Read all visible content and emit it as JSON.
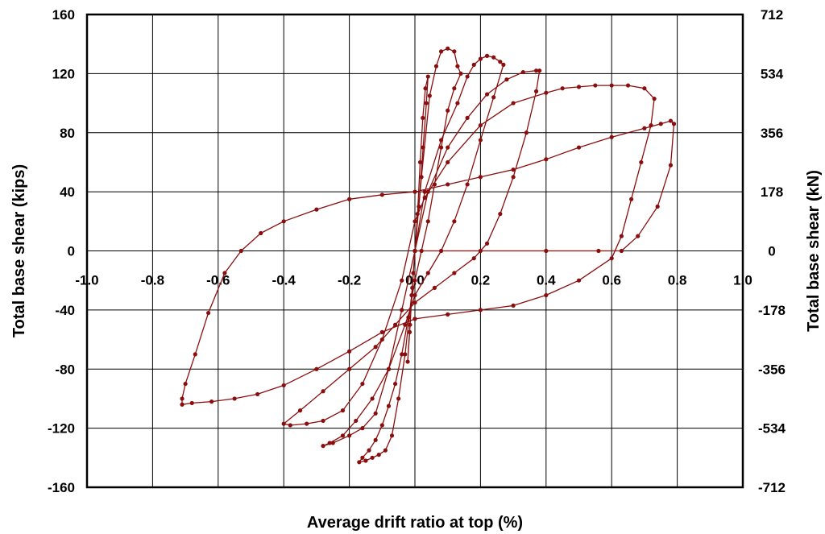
{
  "chart_data": {
    "type": "line",
    "xlabel": "Average drift ratio at top (%)",
    "ylabel": "Total base shear (kips)",
    "ylabel_right": "Total base shear (kN)",
    "xlim": [
      -1.0,
      1.0
    ],
    "ylim": [
      -160,
      160
    ],
    "grid": true,
    "legend": "none",
    "color": "#8b0e0e",
    "x_ticks": [
      -1.0,
      -0.8,
      -0.6,
      -0.4,
      -0.2,
      0.0,
      0.2,
      0.4,
      0.6,
      0.8,
      1.0
    ],
    "x_tick_labels": [
      "-1.0",
      "-0.8",
      "-0.6",
      "-0.4",
      "-0.2",
      "0.0",
      "0.2",
      "0.4",
      "0.6",
      "0.8",
      "1.0"
    ],
    "y_ticks": [
      -160,
      -120,
      -80,
      -40,
      0,
      40,
      80,
      120,
      160
    ],
    "y_tick_labels": [
      "-160",
      "-120",
      "-80",
      "-40",
      "0",
      "40",
      "80",
      "120",
      "160"
    ],
    "y2_tick_labels": [
      "-712",
      "-534",
      "-356",
      "-178",
      "0",
      "178",
      "356",
      "534",
      "712"
    ],
    "series": [
      {
        "points": [
          [
            0.0,
            0
          ],
          [
            0.008,
            25
          ],
          [
            0.016,
            60
          ],
          [
            0.024,
            90
          ],
          [
            0.032,
            110
          ],
          [
            0.04,
            118
          ],
          [
            0.035,
            100
          ],
          [
            0.025,
            70
          ],
          [
            0.012,
            30
          ],
          [
            0.0,
            0
          ],
          [
            -0.008,
            -25
          ],
          [
            -0.016,
            -55
          ],
          [
            -0.022,
            -75
          ],
          [
            -0.015,
            -50
          ],
          [
            -0.005,
            -15
          ],
          [
            0.0,
            0
          ],
          [
            0.02,
            50
          ],
          [
            0.045,
            105
          ],
          [
            0.065,
            125
          ],
          [
            0.08,
            135
          ],
          [
            0.1,
            137
          ],
          [
            0.12,
            135
          ],
          [
            0.13,
            125
          ],
          [
            0.14,
            120
          ],
          [
            0.12,
            110
          ],
          [
            0.1,
            95
          ],
          [
            0.08,
            70
          ],
          [
            0.06,
            45
          ],
          [
            0.04,
            20
          ],
          [
            0.02,
            0
          ],
          [
            0.0,
            -20
          ],
          [
            -0.02,
            -45
          ],
          [
            -0.04,
            -70
          ],
          [
            -0.06,
            -90
          ],
          [
            -0.08,
            -105
          ],
          [
            -0.1,
            -118
          ],
          [
            -0.12,
            -128
          ],
          [
            -0.14,
            -135
          ],
          [
            -0.16,
            -140
          ],
          [
            -0.17,
            -143
          ],
          [
            -0.15,
            -142
          ],
          [
            -0.13,
            -140
          ],
          [
            -0.11,
            -138
          ],
          [
            -0.09,
            -135
          ],
          [
            -0.07,
            -125
          ],
          [
            -0.05,
            -100
          ],
          [
            -0.03,
            -70
          ],
          [
            -0.01,
            -30
          ],
          [
            0.0,
            0
          ],
          [
            0.03,
            40
          ],
          [
            0.08,
            75
          ],
          [
            0.13,
            100
          ],
          [
            0.16,
            118
          ],
          [
            0.18,
            126
          ],
          [
            0.2,
            130
          ],
          [
            0.22,
            132
          ],
          [
            0.24,
            131
          ],
          [
            0.26,
            128
          ],
          [
            0.27,
            126
          ],
          [
            0.24,
            104
          ],
          [
            0.2,
            75
          ],
          [
            0.16,
            45
          ],
          [
            0.12,
            20
          ],
          [
            0.08,
            0
          ],
          [
            0.04,
            -15
          ],
          [
            0.0,
            -30
          ],
          [
            -0.03,
            -50
          ],
          [
            -0.08,
            -80
          ],
          [
            -0.13,
            -100
          ],
          [
            -0.18,
            -115
          ],
          [
            -0.22,
            -125
          ],
          [
            -0.26,
            -130
          ],
          [
            -0.28,
            -132
          ],
          [
            -0.25,
            -130
          ],
          [
            -0.2,
            -125
          ],
          [
            -0.16,
            -120
          ],
          [
            -0.12,
            -110
          ],
          [
            -0.08,
            -80
          ],
          [
            -0.04,
            -40
          ],
          [
            0.0,
            0
          ],
          [
            0.04,
            40
          ],
          [
            0.1,
            70
          ],
          [
            0.16,
            90
          ],
          [
            0.22,
            106
          ],
          [
            0.28,
            116
          ],
          [
            0.33,
            121
          ],
          [
            0.37,
            122
          ],
          [
            0.38,
            122
          ],
          [
            0.37,
            108
          ],
          [
            0.34,
            80
          ],
          [
            0.3,
            50
          ],
          [
            0.26,
            25
          ],
          [
            0.22,
            5
          ],
          [
            0.18,
            -5
          ],
          [
            0.12,
            -15
          ],
          [
            0.06,
            -25
          ],
          [
            0.0,
            -35
          ],
          [
            -0.06,
            -50
          ],
          [
            -0.12,
            -65
          ],
          [
            -0.2,
            -80
          ],
          [
            -0.28,
            -95
          ],
          [
            -0.35,
            -108
          ],
          [
            -0.4,
            -117
          ],
          [
            -0.38,
            -118
          ],
          [
            -0.33,
            -117
          ],
          [
            -0.28,
            -115
          ],
          [
            -0.22,
            -108
          ],
          [
            -0.16,
            -90
          ],
          [
            -0.1,
            -60
          ],
          [
            -0.04,
            -20
          ],
          [
            0.0,
            20
          ],
          [
            0.03,
            36
          ],
          [
            0.1,
            60
          ],
          [
            0.2,
            85
          ],
          [
            0.3,
            100
          ],
          [
            0.4,
            107
          ],
          [
            0.45,
            110
          ],
          [
            0.5,
            111
          ],
          [
            0.55,
            112
          ],
          [
            0.6,
            112
          ],
          [
            0.65,
            112
          ],
          [
            0.7,
            110
          ],
          [
            0.73,
            103
          ],
          [
            0.72,
            85
          ],
          [
            0.69,
            60
          ],
          [
            0.66,
            35
          ],
          [
            0.63,
            10
          ],
          [
            0.6,
            -5
          ],
          [
            0.5,
            -20
          ],
          [
            0.4,
            -30
          ],
          [
            0.3,
            -37
          ],
          [
            0.2,
            -40
          ],
          [
            0.1,
            -43
          ],
          [
            0.0,
            -46
          ],
          [
            -0.1,
            -55
          ],
          [
            -0.2,
            -68
          ],
          [
            -0.3,
            -80
          ],
          [
            -0.4,
            -91
          ],
          [
            -0.48,
            -97
          ],
          [
            -0.55,
            -100
          ],
          [
            -0.62,
            -102
          ],
          [
            -0.68,
            -103
          ],
          [
            -0.71,
            -104
          ],
          [
            -0.71,
            -100
          ],
          [
            -0.7,
            -90
          ],
          [
            -0.67,
            -70
          ],
          [
            -0.63,
            -42
          ],
          [
            -0.58,
            -15
          ],
          [
            -0.53,
            0
          ],
          [
            -0.47,
            12
          ],
          [
            -0.4,
            20
          ],
          [
            -0.3,
            28
          ],
          [
            -0.2,
            35
          ],
          [
            -0.1,
            38
          ],
          [
            0.0,
            40
          ],
          [
            0.1,
            45
          ],
          [
            0.2,
            50
          ],
          [
            0.3,
            55
          ],
          [
            0.4,
            62
          ],
          [
            0.5,
            70
          ],
          [
            0.6,
            77
          ],
          [
            0.7,
            83
          ],
          [
            0.75,
            86
          ],
          [
            0.78,
            88
          ],
          [
            0.79,
            86
          ],
          [
            0.78,
            58
          ],
          [
            0.74,
            30
          ],
          [
            0.68,
            10
          ],
          [
            0.63,
            0
          ],
          [
            0.56,
            0
          ],
          [
            0.4,
            0
          ],
          [
            0.2,
            0
          ],
          [
            0.0,
            0
          ]
        ]
      }
    ]
  }
}
